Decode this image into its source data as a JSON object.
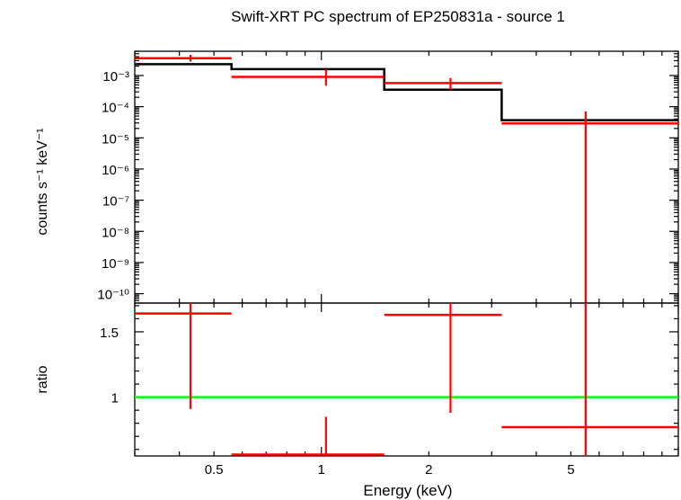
{
  "chart_data": [
    {
      "type": "step",
      "title": "Swift-XRT PC spectrum of EP250831a - source 1",
      "xlabel": "",
      "ylabel": "counts s⁻¹ keV⁻¹",
      "xscale": "log",
      "yscale": "log",
      "xlim": [
        0.3,
        10
      ],
      "ylim": [
        5e-11,
        0.006
      ],
      "y_tick_labels": [
        "10⁻¹⁰",
        "10⁻⁹",
        "10⁻⁸",
        "10⁻⁷",
        "10⁻⁶",
        "10⁻⁵",
        "10⁻⁴",
        "10⁻³"
      ],
      "y_tick_values": [
        1e-10,
        1e-09,
        1e-08,
        1e-07,
        1e-06,
        1e-05,
        0.0001,
        0.001
      ],
      "series": [
        {
          "kind": "model",
          "color": "#000000",
          "bins": [
            {
              "x_lo": 0.3,
              "x_hi": 0.56,
              "y": 0.0023
            },
            {
              "x_lo": 0.56,
              "x_hi": 1.5,
              "y": 0.0016
            },
            {
              "x_lo": 1.5,
              "x_hi": 3.2,
              "y": 0.00035
            },
            {
              "x_lo": 3.2,
              "x_hi": 10,
              "y": 3.7e-05
            }
          ]
        },
        {
          "kind": "data",
          "color": "#ff0000",
          "points": [
            {
              "x": 0.43,
              "x_lo": 0.3,
              "x_hi": 0.56,
              "y": 0.0036,
              "y_lo": 0.0028,
              "y_hi": 0.0046
            },
            {
              "x": 1.03,
              "x_lo": 0.56,
              "x_hi": 1.5,
              "y": 0.0009,
              "y_lo": 0.00047,
              "y_hi": 0.0016
            },
            {
              "x": 2.3,
              "x_lo": 1.5,
              "x_hi": 3.2,
              "y": 0.00057,
              "y_lo": 0.00035,
              "y_hi": 0.00083
            },
            {
              "x": 5.5,
              "x_lo": 3.2,
              "x_hi": 10,
              "y": 2.9e-05,
              "y_lo": 5e-11,
              "y_hi": 7e-05
            }
          ]
        }
      ]
    },
    {
      "type": "scatter",
      "xlabel": "Energy (keV)",
      "ylabel": "ratio",
      "xscale": "log",
      "xlim": [
        0.3,
        10
      ],
      "ylim": [
        0.55,
        1.72
      ],
      "x_ticks": [
        0.5,
        1,
        2,
        5
      ],
      "x_tick_labels": [
        "0.5",
        "1",
        "2",
        "5"
      ],
      "y_ticks": [
        1,
        1.5
      ],
      "y_tick_labels": [
        "1",
        "1.5"
      ],
      "reference_line": {
        "y": 1,
        "color": "#00ff00"
      },
      "series": [
        {
          "kind": "ratio",
          "color": "#ff0000",
          "points": [
            {
              "x": 0.43,
              "x_lo": 0.3,
              "x_hi": 0.56,
              "y": 1.64,
              "y_lo": 0.91,
              "y_hi": 1.72
            },
            {
              "x": 1.03,
              "x_lo": 0.56,
              "x_hi": 1.5,
              "y": 0.56,
              "y_lo": 0.5,
              "y_hi": 0.85
            },
            {
              "x": 2.3,
              "x_lo": 1.5,
              "x_hi": 3.2,
              "y": 1.63,
              "y_lo": 0.88,
              "y_hi": 1.72
            },
            {
              "x": 5.5,
              "x_lo": 3.2,
              "x_hi": 10,
              "y": 0.77,
              "y_lo": 0.5,
              "y_hi": 1.72
            }
          ]
        }
      ]
    }
  ]
}
